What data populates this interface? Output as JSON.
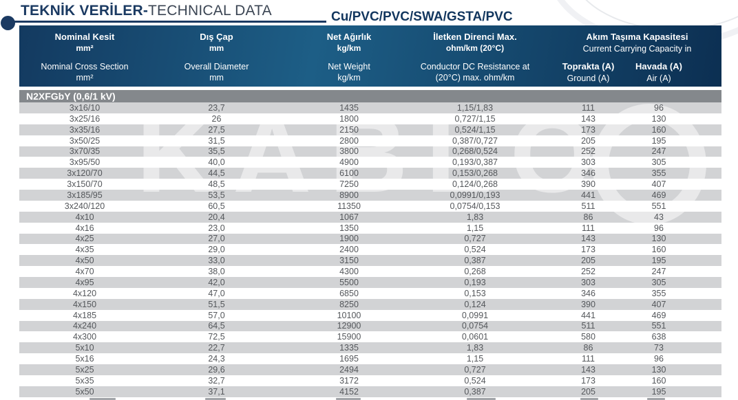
{
  "page": {
    "title_tr": "TEKNİK VERİLER-",
    "title_en": "TECHNICAL DATA",
    "cable_code": "Cu/PVC/PVC/SWA/GSTA/PVC",
    "watermark": "KABLO"
  },
  "colors": {
    "accent_navy": "#1b3a62",
    "header_gradient_left": "#133a60",
    "header_gradient_mid": "#1d5e86",
    "header_gradient_right": "#0c2f52",
    "group_bar_gray": "#84888c",
    "stripe_gray": "#d2d3d5",
    "data_text_gray": "#54575b"
  },
  "table": {
    "header": {
      "cols": [
        {
          "tr": "Nominal Kesit",
          "tr_unit": "mm²",
          "en": "Nominal Cross Section",
          "en_unit": "mm²"
        },
        {
          "tr": "Dış Çap",
          "tr_unit": "mm",
          "en": "Overall Diameter",
          "en_unit": "mm"
        },
        {
          "tr": "Net Ağırlık",
          "tr_unit": "kg/km",
          "en": "Net Weight",
          "en_unit": "kg/km"
        },
        {
          "tr": "İletken Direnci Max.",
          "tr_unit": "ohm/km (20°C)",
          "en": "Conductor DC Resistance at",
          "en_unit": "(20°C) max. ohm/km"
        }
      ],
      "capacity": {
        "tr": "Akım Taşıma Kapasitesi",
        "en": "Current Carrying Capacity in"
      },
      "ground": {
        "tr": "Toprakta (A)",
        "en": "Ground (A)"
      },
      "air": {
        "tr": "Havada (A)",
        "en": "Air (A)"
      }
    },
    "group_label": "N2XFGbY (0,6/1 kV)",
    "rows": [
      [
        "3x16/10",
        "23,7",
        "1435",
        "1,15/1,83",
        "111",
        "96"
      ],
      [
        "3x25/16",
        "26",
        "1800",
        "0,727/1,15",
        "143",
        "130"
      ],
      [
        "3x35/16",
        "27,5",
        "2150",
        "0,524/1,15",
        "173",
        "160"
      ],
      [
        "3x50/25",
        "31,5",
        "2800",
        "0,387/0,727",
        "205",
        "195"
      ],
      [
        "3x70/35",
        "35,5",
        "3800",
        "0,268/0,524",
        "252",
        "247"
      ],
      [
        "3x95/50",
        "40,0",
        "4900",
        "0,193/0,387",
        "303",
        "305"
      ],
      [
        "3x120/70",
        "44,5",
        "6100",
        "0,153/0,268",
        "346",
        "355"
      ],
      [
        "3x150/70",
        "48,5",
        "7250",
        "0,124/0,268",
        "390",
        "407"
      ],
      [
        "3x185/95",
        "53,5",
        "8900",
        "0,0991/0,193",
        "441",
        "469"
      ],
      [
        "3x240/120",
        "60,5",
        "11350",
        "0,0754/0,153",
        "511",
        "551"
      ],
      [
        "4x10",
        "20,4",
        "1067",
        "1,83",
        "86",
        "43"
      ],
      [
        "4x16",
        "23,0",
        "1350",
        "1,15",
        "111",
        "96"
      ],
      [
        "4x25",
        "27,0",
        "1900",
        "0,727",
        "143",
        "130"
      ],
      [
        "4x35",
        "29,0",
        "2400",
        "0,524",
        "173",
        "160"
      ],
      [
        "4x50",
        "33,0",
        "3150",
        "0,387",
        "205",
        "195"
      ],
      [
        "4x70",
        "38,0",
        "4300",
        "0,268",
        "252",
        "247"
      ],
      [
        "4x95",
        "42,0",
        "5500",
        "0,193",
        "303",
        "305"
      ],
      [
        "4x120",
        "47,0",
        "6850",
        "0,153",
        "346",
        "355"
      ],
      [
        "4x150",
        "51,5",
        "8250",
        "0,124",
        "390",
        "407"
      ],
      [
        "4x185",
        "57,0",
        "10100",
        "0,0991",
        "441",
        "469"
      ],
      [
        "4x240",
        "64,5",
        "12900",
        "0,0754",
        "511",
        "551"
      ],
      [
        "4x300",
        "72,5",
        "15900",
        "0,0601",
        "580",
        "638"
      ],
      [
        "5x10",
        "22,7",
        "1335",
        "1,83",
        "86",
        "73"
      ],
      [
        "5x16",
        "24,3",
        "1695",
        "1,15",
        "111",
        "96"
      ],
      [
        "5x25",
        "29,6",
        "2494",
        "0,727",
        "143",
        "130"
      ],
      [
        "5x35",
        "32,7",
        "3172",
        "0,524",
        "173",
        "160"
      ],
      [
        "5x50",
        "37,1",
        "4152",
        "0,387",
        "205",
        "195"
      ]
    ]
  }
}
